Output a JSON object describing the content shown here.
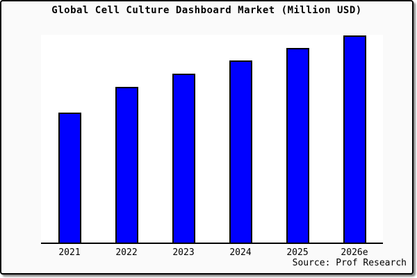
{
  "title": "Global Cell Culture Dashboard Market (Million USD)",
  "source_label": "Source: Prof Research",
  "colors": {
    "bar_fill": "#0000ff",
    "bar_border": "#000000",
    "axis": "#000000",
    "page_bg": "#fafafa",
    "plot_bg": "#ffffff",
    "frame_border": "#000000"
  },
  "chart_data": {
    "type": "bar",
    "title": "Global Cell Culture Dashboard Market (Million USD)",
    "categories": [
      "2021",
      "2022",
      "2023",
      "2024",
      "2025",
      "2026e"
    ],
    "values": [
      63,
      75.3,
      81.7,
      88,
      94,
      100
    ],
    "values_note": "No y-axis tick labels are shown in the chart; values are relative units estimated from bar heights with 2026e = 100.",
    "xlabel": "",
    "ylabel": "",
    "ylim": [
      0,
      100.33
    ],
    "grid": false,
    "legend": false,
    "annotations": [
      "Source: Prof Research"
    ]
  }
}
